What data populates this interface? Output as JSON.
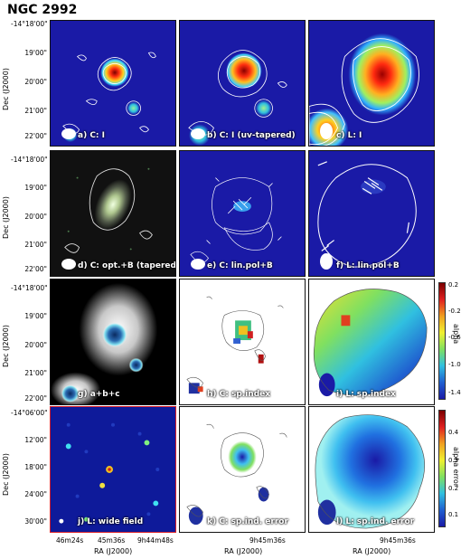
{
  "figure": {
    "title": "NGC 2992",
    "dec_label": "Dec (J2000)",
    "ra_label": "RA (J2000)"
  },
  "rows": [
    {
      "y_ticks": [
        "-14°18'00\"",
        "19'00\"",
        "20'00\"",
        "21'00\"",
        "22'00\""
      ]
    },
    {
      "y_ticks": [
        "-14°18'00\"",
        "19'00\"",
        "20'00\"",
        "21'00\"",
        "22'00\""
      ]
    },
    {
      "y_ticks": [
        "-14°18'00\"",
        "19'00\"",
        "20'00\"",
        "21'00\"",
        "22'00\""
      ]
    },
    {
      "y_ticks": [
        "-14°06'00\"",
        "12'00\"",
        "18'00\"",
        "24'00\"",
        "30'00\""
      ]
    }
  ],
  "panels": [
    {
      "label": "a) C: I"
    },
    {
      "label": "b) C: I (uv-tapered)"
    },
    {
      "label": "c) L: I"
    },
    {
      "label": "d) C: opt.+B (tapered)"
    },
    {
      "label": "e) C: lin.pol+B"
    },
    {
      "label": "f) L: lin.pol+B"
    },
    {
      "label": "g) a+b+c"
    },
    {
      "label": "h) C: sp.index"
    },
    {
      "label": "i) L: sp.index"
    },
    {
      "label": "j) L: wide field"
    },
    {
      "label": "k) C: sp.ind. error"
    },
    {
      "label": "l) L: sp.ind. error"
    }
  ],
  "x_axes": {
    "col1": [
      "46m24s",
      "45m36s",
      "9h44m48s"
    ],
    "col2": [
      "9h45m36s"
    ],
    "col3": [
      "9h45m36s"
    ]
  },
  "colorbars": {
    "alpha": {
      "label": "alpha",
      "ticks": [
        "0.2",
        "-0.2",
        "-0.6",
        "-1.0",
        "-1.4"
      ]
    },
    "alpha_error": {
      "label": "alpha error",
      "ticks": [
        "0.4",
        "0.3",
        "0.2",
        "0.1"
      ]
    }
  },
  "colors": {
    "background_blue": "#1a1aa6",
    "frame_red": "#d8202a"
  }
}
